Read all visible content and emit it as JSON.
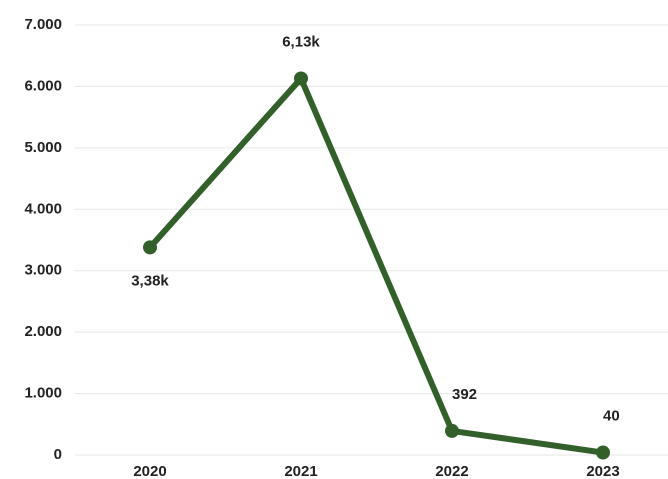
{
  "chart_data": {
    "type": "line",
    "categories": [
      "2020",
      "2021",
      "2022",
      "2023"
    ],
    "series": [
      {
        "color": "#33602a",
        "values": [
          3380,
          6130,
          392,
          40
        ],
        "value_labels": [
          "3,38k",
          "6,13k",
          "392",
          "40"
        ]
      }
    ],
    "ylim": [
      0,
      7000
    ],
    "yticks": [
      0,
      {
        "value": 1000,
        "label": "1.000"
      },
      {
        "value": 2000,
        "label": "2.000"
      },
      {
        "value": 3000,
        "label": "3.000"
      },
      {
        "value": 4000,
        "label": "4.000"
      },
      {
        "value": 5000,
        "label": "5.000"
      },
      {
        "value": 6000,
        "label": "6.000"
      },
      {
        "value": 7000,
        "label": "7.000"
      }
    ],
    "grid": true
  }
}
